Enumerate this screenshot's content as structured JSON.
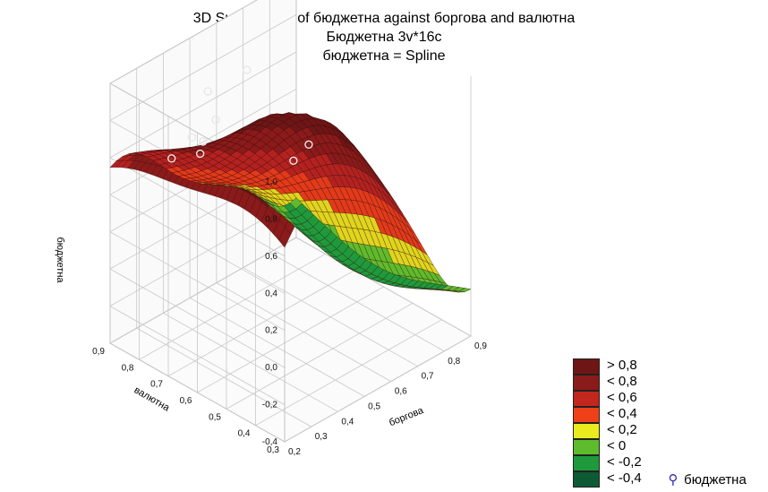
{
  "chart_data": {
    "type": "surface3d",
    "title": "3D Surface Plot of бюджетна against боргова and валютна",
    "subtitle": "Бюджетна 3v*16c",
    "subtitle2": "бюджетна = Spline",
    "zlabel": "бюджетна",
    "xlabel": "боргова",
    "ylabel": "валютна",
    "x_ticks": [
      "0,2",
      "0,3",
      "0,4",
      "0,5",
      "0,6",
      "0,7",
      "0,8",
      "0,9"
    ],
    "y_ticks": [
      "0,3",
      "0,4",
      "0,5",
      "0,6",
      "0,7",
      "0,8",
      "0,9"
    ],
    "z_ticks": [
      "-0,4",
      "-0,2",
      "0,0",
      "0,2",
      "0,4",
      "0,6",
      "0,8",
      "1,0"
    ],
    "xlim": [
      0.2,
      0.9
    ],
    "ylim": [
      0.3,
      0.9
    ],
    "zlim": [
      -0.4,
      1.0
    ],
    "legend": {
      "position": "bottom-right",
      "items": [
        {
          "label": "> 0,8",
          "color": "#6e1616"
        },
        {
          "label": "< 0,8",
          "color": "#8b1a1a"
        },
        {
          "label": "< 0,6",
          "color": "#c2261c"
        },
        {
          "label": "< 0,4",
          "color": "#f04018"
        },
        {
          "label": "< 0,2",
          "color": "#eaea1e"
        },
        {
          "label": "< 0",
          "color": "#5ebc2c"
        },
        {
          "label": "< -0,2",
          "color": "#1e9a3c"
        },
        {
          "label": "< -0,4",
          "color": "#0e5a34"
        }
      ],
      "points_label": "бюджетна"
    },
    "points": [
      {
        "x": 0.4,
        "y": 0.4,
        "z": 0.95
      },
      {
        "x": 0.55,
        "y": 0.75,
        "z": 0.92
      },
      {
        "x": 0.4,
        "y": 0.72,
        "z": 0.8
      },
      {
        "x": 0.48,
        "y": 0.82,
        "z": 0.8
      },
      {
        "x": 0.32,
        "y": 0.7,
        "z": 0.7
      },
      {
        "x": 0.3,
        "y": 0.78,
        "z": 0.62
      },
      {
        "x": 0.42,
        "y": 0.82,
        "z": 0.6
      },
      {
        "x": 0.44,
        "y": 0.8,
        "z": 0.58
      },
      {
        "x": 0.78,
        "y": 0.8,
        "z": 0.2
      }
    ]
  }
}
